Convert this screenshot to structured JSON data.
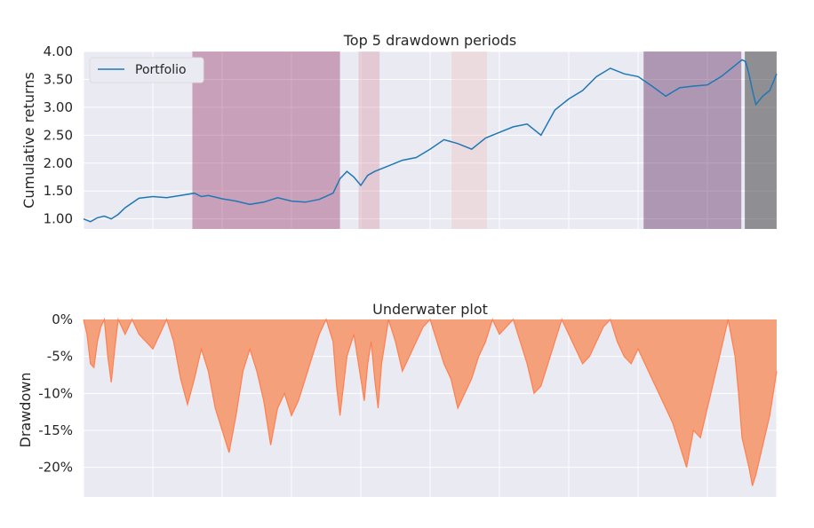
{
  "chart_data": [
    {
      "type": "line",
      "title": "Top 5 drawdown periods",
      "xlabel": "",
      "ylabel": "Cumulative returns",
      "ylim": [
        0.82,
        4.0
      ],
      "yticks": [
        "1.00",
        "1.50",
        "2.00",
        "2.50",
        "3.00",
        "3.50",
        "4.00"
      ],
      "ytick_values": [
        1.0,
        1.5,
        2.0,
        2.5,
        3.0,
        3.5,
        4.0
      ],
      "x_range": [
        0,
        1000
      ],
      "legend": {
        "position": "top-left",
        "entries": [
          "Portfolio"
        ]
      },
      "grid": true,
      "series": [
        {
          "name": "Portfolio",
          "color": "#1f77b4",
          "x": [
            0,
            10,
            20,
            30,
            40,
            50,
            60,
            80,
            100,
            120,
            140,
            160,
            170,
            180,
            200,
            220,
            240,
            260,
            280,
            300,
            320,
            340,
            360,
            370,
            380,
            390,
            400,
            410,
            420,
            430,
            440,
            460,
            480,
            500,
            520,
            540,
            560,
            570,
            580,
            600,
            620,
            640,
            660,
            680,
            700,
            720,
            740,
            760,
            780,
            800,
            820,
            840,
            860,
            880,
            900,
            920,
            940,
            950,
            955,
            960,
            965,
            970,
            980,
            990,
            1000
          ],
          "values": [
            1.0,
            0.95,
            1.02,
            1.05,
            1.0,
            1.08,
            1.2,
            1.37,
            1.4,
            1.38,
            1.42,
            1.46,
            1.4,
            1.42,
            1.36,
            1.32,
            1.26,
            1.3,
            1.38,
            1.32,
            1.3,
            1.35,
            1.46,
            1.72,
            1.85,
            1.75,
            1.6,
            1.78,
            1.85,
            1.9,
            1.95,
            2.05,
            2.1,
            2.25,
            2.42,
            2.35,
            2.25,
            2.35,
            2.45,
            2.55,
            2.65,
            2.7,
            2.5,
            2.95,
            3.15,
            3.3,
            3.55,
            3.7,
            3.6,
            3.55,
            3.38,
            3.2,
            3.35,
            3.38,
            3.4,
            3.55,
            3.75,
            3.85,
            3.82,
            3.6,
            3.3,
            3.05,
            3.2,
            3.3,
            3.6
          ]
        }
      ],
      "drawdown_periods": [
        {
          "x_start": 157,
          "x_end": 370,
          "color": "#993366",
          "opacity": 0.4
        },
        {
          "x_start": 397,
          "x_end": 427,
          "color": "#cc6677",
          "opacity": 0.25
        },
        {
          "x_start": 531,
          "x_end": 582,
          "color": "#f0b8b0",
          "opacity": 0.3
        },
        {
          "x_start": 808,
          "x_end": 949,
          "color": "#663366",
          "opacity": 0.45
        },
        {
          "x_start": 954,
          "x_end": 1000,
          "color": "#333333",
          "opacity": 0.5
        }
      ]
    },
    {
      "type": "area",
      "title": "Underwater plot",
      "xlabel": "",
      "ylabel": "Drawdown",
      "ylim": [
        -24,
        0
      ],
      "yticks": [
        "0%",
        "-5%",
        "-10%",
        "-15%",
        "-20%"
      ],
      "ytick_values": [
        0,
        -5,
        -10,
        -15,
        -20
      ],
      "x_range": [
        0,
        1000
      ],
      "grid": true,
      "series": [
        {
          "name": "",
          "color": "#ff7f50",
          "fill": "#f4a07a",
          "x": [
            0,
            5,
            10,
            15,
            20,
            25,
            30,
            35,
            40,
            45,
            50,
            55,
            60,
            70,
            80,
            90,
            100,
            110,
            115,
            120,
            130,
            140,
            150,
            160,
            170,
            180,
            190,
            200,
            210,
            220,
            230,
            240,
            250,
            260,
            270,
            280,
            290,
            300,
            310,
            320,
            330,
            340,
            350,
            360,
            365,
            370,
            380,
            390,
            400,
            405,
            410,
            415,
            420,
            425,
            430,
            440,
            450,
            460,
            470,
            480,
            490,
            500,
            510,
            520,
            530,
            540,
            550,
            560,
            570,
            580,
            590,
            600,
            610,
            620,
            630,
            640,
            650,
            660,
            670,
            680,
            690,
            700,
            710,
            720,
            730,
            740,
            750,
            760,
            770,
            780,
            790,
            800,
            810,
            820,
            830,
            840,
            850,
            860,
            870,
            880,
            890,
            900,
            910,
            920,
            930,
            940,
            945,
            950,
            955,
            960,
            965,
            970,
            975,
            980,
            985,
            990,
            995,
            1000
          ],
          "values": [
            0,
            -2,
            -6,
            -6.5,
            -3,
            -1,
            0,
            -5,
            -8.5,
            -4,
            0,
            -1,
            -2,
            0,
            -2,
            -3,
            -4,
            -2,
            -1,
            0,
            -3,
            -8,
            -11.5,
            -8,
            -4,
            -7,
            -12,
            -15,
            -18,
            -13,
            -7,
            -4,
            -7,
            -11,
            -17,
            -12,
            -10,
            -13,
            -11,
            -8,
            -5,
            -2,
            0,
            -3,
            -9,
            -13,
            -5,
            -2,
            -8,
            -11,
            -6,
            -3,
            -8,
            -12,
            -6,
            0,
            -3,
            -7,
            -5,
            -3,
            -1,
            0,
            -3,
            -6,
            -8,
            -12,
            -10,
            -8,
            -5,
            -3,
            0,
            -2,
            -1,
            0,
            -3,
            -6,
            -10,
            -9,
            -6,
            -3,
            0,
            -2,
            -4,
            -6,
            -5,
            -3,
            -1,
            0,
            -3,
            -5,
            -6,
            -4,
            -6,
            -8,
            -10,
            -12,
            -14,
            -17,
            -20,
            -15,
            -16,
            -12,
            -8,
            -4,
            0,
            -5,
            -10,
            -16,
            -18,
            -20,
            -22.5,
            -21,
            -19,
            -17,
            -15,
            -13,
            -10,
            -7
          ]
        }
      ]
    }
  ]
}
